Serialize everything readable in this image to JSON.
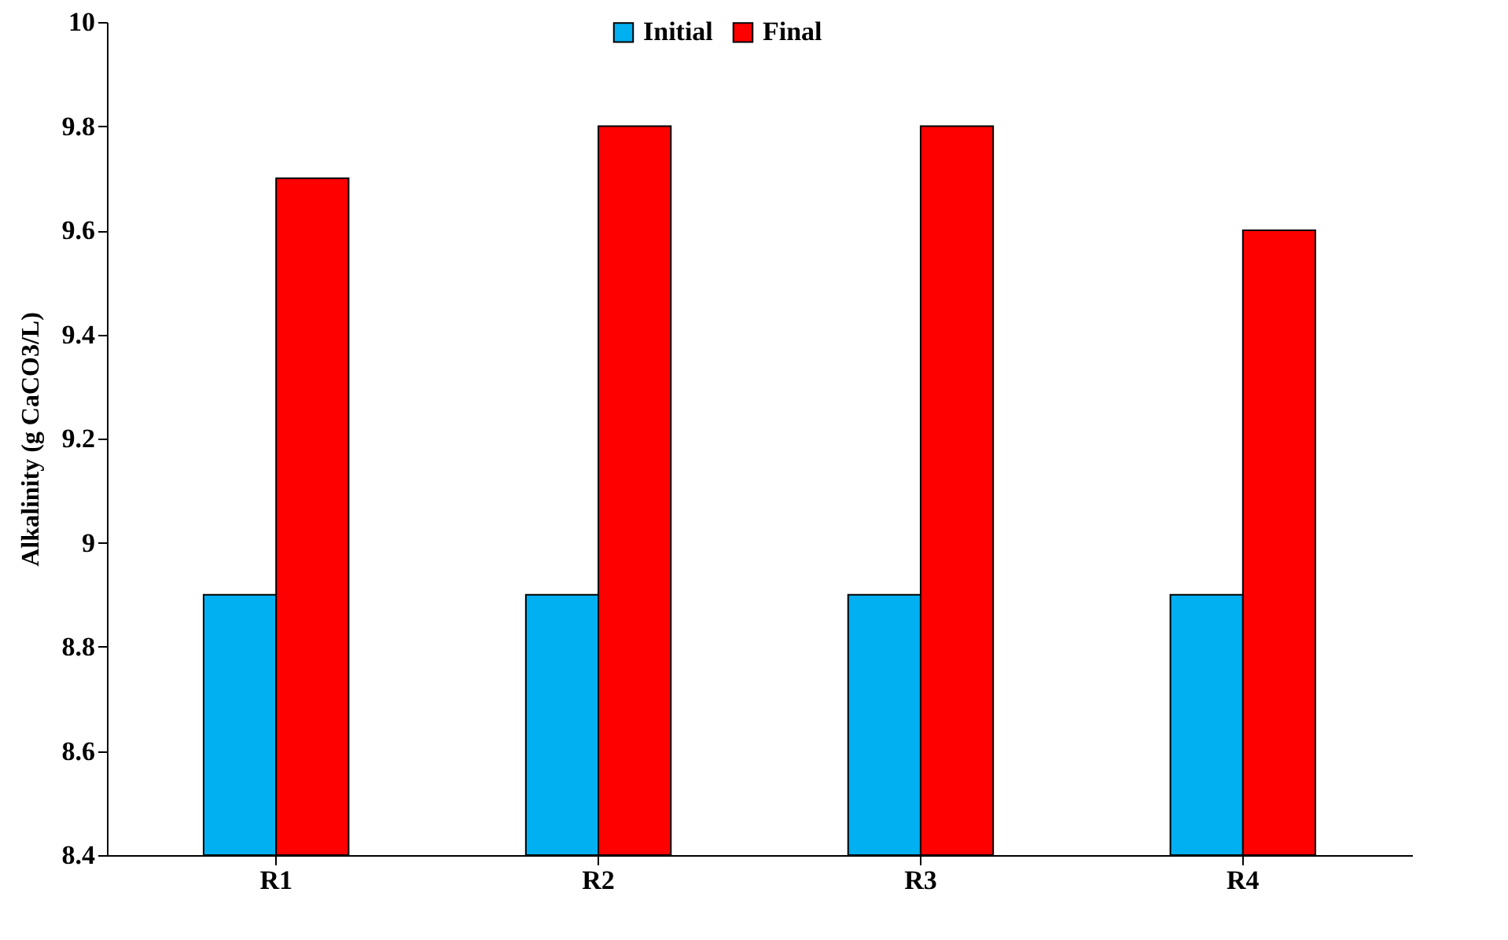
{
  "chart_data": {
    "type": "bar",
    "ylabel": "Alkalinity (g CaCO3/L)",
    "categories": [
      "R1",
      "R2",
      "R3",
      "R4"
    ],
    "series": [
      {
        "name": "Initial",
        "color": "#00b0f0",
        "values": [
          8.9,
          8.9,
          8.9,
          8.9
        ]
      },
      {
        "name": "Final",
        "color": "#ff0000",
        "values": [
          9.7,
          9.8,
          9.8,
          9.6
        ]
      }
    ],
    "ylim": [
      8.4,
      10
    ],
    "yticks": [
      8.4,
      8.6,
      8.8,
      9,
      9.2,
      9.4,
      9.6,
      9.8,
      10
    ],
    "grid": false,
    "legend": "top"
  }
}
